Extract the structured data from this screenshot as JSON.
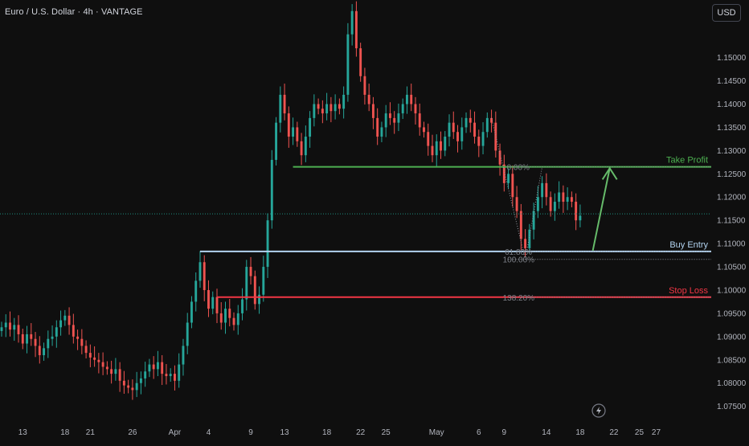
{
  "header": {
    "title": "Euro / U.S. Dollar · 4h · VANTAGE"
  },
  "toolbar": {
    "currency_label": "USD"
  },
  "icons": {
    "replay": "lightning-icon"
  },
  "colors": {
    "up": "#26a69a",
    "down": "#ef5350",
    "take_profit": "#4caf50",
    "buy_entry": "#b2d3f0",
    "stop_loss": "#f23645",
    "current_price": "#1e8c7e",
    "arrow": "#66bb6a"
  },
  "chart_data": {
    "type": "candlestick",
    "instrument": "Euro / U.S. Dollar",
    "timeframe": "4h",
    "broker": "VANTAGE",
    "currency": "USD",
    "y_ticks": [
      "1.15000",
      "1.14500",
      "1.14000",
      "1.13500",
      "1.13000",
      "1.12500",
      "1.12000",
      "1.11500",
      "1.11000",
      "1.10500",
      "1.10000",
      "1.09500",
      "1.09000",
      "1.08500",
      "1.08000",
      "1.07500"
    ],
    "ylim": [
      1.072,
      1.161
    ],
    "x_ticks": [
      {
        "label": "13",
        "x": 13
      },
      {
        "label": "18",
        "x": 18
      },
      {
        "label": "21",
        "x": 21
      },
      {
        "label": "26",
        "x": 26
      },
      {
        "label": "Apr",
        "x": 31
      },
      {
        "label": "4",
        "x": 35
      },
      {
        "label": "9",
        "x": 40
      },
      {
        "label": "13",
        "x": 44
      },
      {
        "label": "18",
        "x": 49
      },
      {
        "label": "22",
        "x": 53
      },
      {
        "label": "25",
        "x": 56
      },
      {
        "label": "May",
        "x": 62
      },
      {
        "label": "6",
        "x": 67
      },
      {
        "label": "9",
        "x": 70
      },
      {
        "label": "14",
        "x": 75
      },
      {
        "label": "18",
        "x": 79
      },
      {
        "label": "22",
        "x": 83
      },
      {
        "label": "25",
        "x": 86
      },
      {
        "label": "27",
        "x": 88
      }
    ],
    "xlim": [
      10.5,
      89
    ],
    "series": [
      {
        "x": 10.5,
        "close": 1.092
      },
      {
        "x": 11,
        "close": 1.093
      },
      {
        "x": 11.5,
        "close": 1.0915
      },
      {
        "x": 12,
        "close": 1.0925
      },
      {
        "x": 12.5,
        "close": 1.0905
      },
      {
        "x": 13,
        "close": 1.0885
      },
      {
        "x": 13.5,
        "close": 1.0905
      },
      {
        "x": 14,
        "close": 1.0895
      },
      {
        "x": 14.5,
        "close": 1.088
      },
      {
        "x": 15,
        "close": 1.086
      },
      {
        "x": 15.5,
        "close": 1.0875
      },
      {
        "x": 16,
        "close": 1.0895
      },
      {
        "x": 16.5,
        "close": 1.09
      },
      {
        "x": 17,
        "close": 1.092
      },
      {
        "x": 17.5,
        "close": 1.0935
      },
      {
        "x": 18,
        "close": 1.0945
      },
      {
        "x": 18.5,
        "close": 1.0925
      },
      {
        "x": 19,
        "close": 1.09
      },
      {
        "x": 19.5,
        "close": 1.0895
      },
      {
        "x": 20,
        "close": 1.088
      },
      {
        "x": 20.5,
        "close": 1.0865
      },
      {
        "x": 21,
        "close": 1.0855
      },
      {
        "x": 21.5,
        "close": 1.085
      },
      {
        "x": 22,
        "close": 1.0845
      },
      {
        "x": 22.5,
        "close": 1.0835
      },
      {
        "x": 23,
        "close": 1.083
      },
      {
        "x": 23.5,
        "close": 1.082
      },
      {
        "x": 24,
        "close": 1.083
      },
      {
        "x": 24.5,
        "close": 1.0805
      },
      {
        "x": 25,
        "close": 1.0795
      },
      {
        "x": 25.5,
        "close": 1.079
      },
      {
        "x": 26,
        "close": 1.0785
      },
      {
        "x": 26.5,
        "close": 1.08
      },
      {
        "x": 27,
        "close": 1.081
      },
      {
        "x": 27.5,
        "close": 1.0825
      },
      {
        "x": 28,
        "close": 1.084
      },
      {
        "x": 28.5,
        "close": 1.083
      },
      {
        "x": 29,
        "close": 1.0845
      },
      {
        "x": 29.5,
        "close": 1.082
      },
      {
        "x": 30,
        "close": 1.0815
      },
      {
        "x": 30.5,
        "close": 1.082
      },
      {
        "x": 31,
        "close": 1.0805
      },
      {
        "x": 31.5,
        "close": 1.084
      },
      {
        "x": 32,
        "close": 1.088
      },
      {
        "x": 32.5,
        "close": 1.093
      },
      {
        "x": 33,
        "close": 1.0975
      },
      {
        "x": 33.5,
        "close": 1.102
      },
      {
        "x": 34,
        "close": 1.106
      },
      {
        "x": 34.5,
        "close": 1.1
      },
      {
        "x": 35,
        "close": 1.096
      },
      {
        "x": 35.5,
        "close": 1.0985
      },
      {
        "x": 36,
        "close": 1.095
      },
      {
        "x": 36.5,
        "close": 1.093
      },
      {
        "x": 37,
        "close": 1.096
      },
      {
        "x": 37.5,
        "close": 1.094
      },
      {
        "x": 38,
        "close": 1.0925
      },
      {
        "x": 38.5,
        "close": 1.095
      },
      {
        "x": 39,
        "close": 1.098
      },
      {
        "x": 39.5,
        "close": 1.105
      },
      {
        "x": 40,
        "close": 1.103
      },
      {
        "x": 40.5,
        "close": 1.097
      },
      {
        "x": 41,
        "close": 1.099
      },
      {
        "x": 41.5,
        "close": 1.105
      },
      {
        "x": 42,
        "close": 1.115
      },
      {
        "x": 42.5,
        "close": 1.128
      },
      {
        "x": 43,
        "close": 1.136
      },
      {
        "x": 43.5,
        "close": 1.142
      },
      {
        "x": 44,
        "close": 1.138
      },
      {
        "x": 44.5,
        "close": 1.133
      },
      {
        "x": 45,
        "close": 1.135
      },
      {
        "x": 45.5,
        "close": 1.132
      },
      {
        "x": 46,
        "close": 1.129
      },
      {
        "x": 46.5,
        "close": 1.133
      },
      {
        "x": 47,
        "close": 1.137
      },
      {
        "x": 47.5,
        "close": 1.14
      },
      {
        "x": 48,
        "close": 1.139
      },
      {
        "x": 48.5,
        "close": 1.138
      },
      {
        "x": 49,
        "close": 1.14
      },
      {
        "x": 49.5,
        "close": 1.1385
      },
      {
        "x": 50,
        "close": 1.14
      },
      {
        "x": 50.5,
        "close": 1.139
      },
      {
        "x": 51,
        "close": 1.142
      },
      {
        "x": 51.5,
        "close": 1.155
      },
      {
        "x": 52,
        "close": 1.16
      },
      {
        "x": 52.5,
        "close": 1.152
      },
      {
        "x": 53,
        "close": 1.146
      },
      {
        "x": 53.5,
        "close": 1.142
      },
      {
        "x": 54,
        "close": 1.14
      },
      {
        "x": 54.5,
        "close": 1.137
      },
      {
        "x": 55,
        "close": 1.133
      },
      {
        "x": 55.5,
        "close": 1.135
      },
      {
        "x": 56,
        "close": 1.138
      },
      {
        "x": 56.5,
        "close": 1.137
      },
      {
        "x": 57,
        "close": 1.136
      },
      {
        "x": 57.5,
        "close": 1.138
      },
      {
        "x": 58,
        "close": 1.14
      },
      {
        "x": 58.5,
        "close": 1.142
      },
      {
        "x": 59,
        "close": 1.14
      },
      {
        "x": 59.5,
        "close": 1.138
      },
      {
        "x": 60,
        "close": 1.135
      },
      {
        "x": 60.5,
        "close": 1.134
      },
      {
        "x": 61,
        "close": 1.131
      },
      {
        "x": 61.5,
        "close": 1.129
      },
      {
        "x": 62,
        "close": 1.132
      },
      {
        "x": 62.5,
        "close": 1.13
      },
      {
        "x": 63,
        "close": 1.133
      },
      {
        "x": 63.5,
        "close": 1.136
      },
      {
        "x": 64,
        "close": 1.134
      },
      {
        "x": 64.5,
        "close": 1.132
      },
      {
        "x": 65,
        "close": 1.135
      },
      {
        "x": 65.5,
        "close": 1.137
      },
      {
        "x": 66,
        "close": 1.136
      },
      {
        "x": 66.5,
        "close": 1.133
      },
      {
        "x": 67,
        "close": 1.131
      },
      {
        "x": 67.5,
        "close": 1.134
      },
      {
        "x": 68,
        "close": 1.137
      },
      {
        "x": 68.5,
        "close": 1.136
      },
      {
        "x": 69,
        "close": 1.13
      },
      {
        "x": 69.5,
        "close": 1.127
      },
      {
        "x": 70,
        "close": 1.123
      },
      {
        "x": 70.5,
        "close": 1.125
      },
      {
        "x": 71,
        "close": 1.12
      },
      {
        "x": 71.5,
        "close": 1.117
      },
      {
        "x": 72,
        "close": 1.111
      },
      {
        "x": 72.5,
        "close": 1.109
      },
      {
        "x": 73,
        "close": 1.113
      },
      {
        "x": 73.5,
        "close": 1.117
      },
      {
        "x": 74,
        "close": 1.12
      },
      {
        "x": 74.5,
        "close": 1.123
      },
      {
        "x": 75,
        "close": 1.12
      },
      {
        "x": 75.5,
        "close": 1.117
      },
      {
        "x": 76,
        "close": 1.119
      },
      {
        "x": 76.5,
        "close": 1.121
      },
      {
        "x": 77,
        "close": 1.119
      },
      {
        "x": 77.5,
        "close": 1.12
      },
      {
        "x": 78,
        "close": 1.119
      },
      {
        "x": 78.5,
        "close": 1.115
      },
      {
        "x": 79,
        "close": 1.116
      }
    ],
    "levels": [
      {
        "name": "take-profit",
        "label": "Take Profit",
        "price": 1.12651,
        "tag": "1.12651",
        "from_x": 45
      },
      {
        "name": "buy-entry",
        "label": "Buy Entry",
        "price": 1.10831,
        "tag": "1.10831",
        "from_x": 34
      },
      {
        "name": "stop-loss",
        "label": "Stop Loss",
        "price": 1.09848,
        "tag": "1.09848",
        "from_x": 36
      }
    ],
    "current_price": {
      "price": 1.11639,
      "tag": "1.11639"
    },
    "fibonacci": [
      {
        "label": "0.00%",
        "price": 1.12651
      },
      {
        "label": "61.80%",
        "price": 1.10831
      },
      {
        "label": "100.00%",
        "price": 1.10661
      },
      {
        "label": "138.20%",
        "price": 1.09848
      }
    ],
    "projection": {
      "from_x": 80.5,
      "from_price": 1.1085,
      "to_x": 82.5,
      "to_price": 1.1262
    }
  }
}
